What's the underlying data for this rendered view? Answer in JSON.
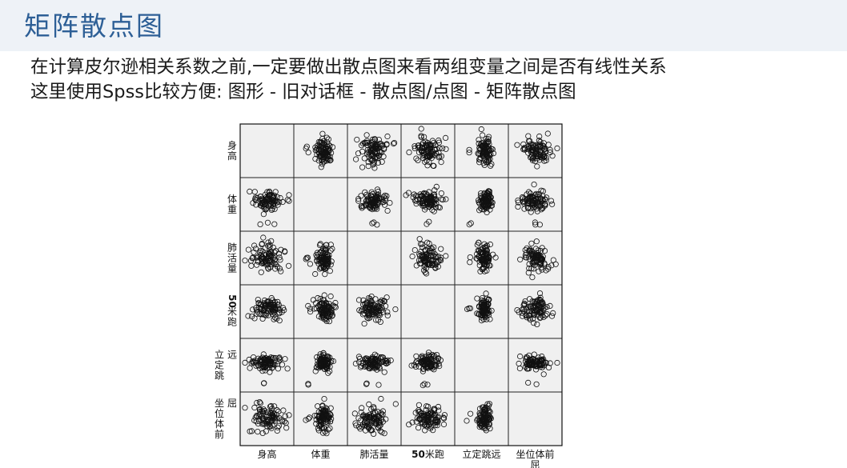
{
  "slide": {
    "title": "矩阵散点图",
    "line1": "在计算皮尔逊相关系数之前,一定要做出散点图来看两组变量之间是否有线性关系",
    "line2": "这里使用Spss比较方便: 图形 - 旧对话框 - 散点图/点图 - 矩阵散点图"
  },
  "chart_data": {
    "type": "scatter",
    "subtype": "scatterplot-matrix",
    "variables": [
      "身高",
      "体重",
      "肺活量",
      "50米跑",
      "立定跳远",
      "坐位体前屈"
    ],
    "row_labels": [
      "身高",
      "体重",
      "肺活量",
      "50米跑",
      "立定跳远",
      "坐位体前屈"
    ],
    "col_labels": [
      "身高",
      "体重",
      "肺活量",
      "50米跑",
      "立定跳远",
      "坐位体前屈"
    ],
    "diagonal": "empty",
    "grid": false,
    "legend": "none",
    "marker": "open-circle",
    "panel_background": "#f0f0f0"
  }
}
